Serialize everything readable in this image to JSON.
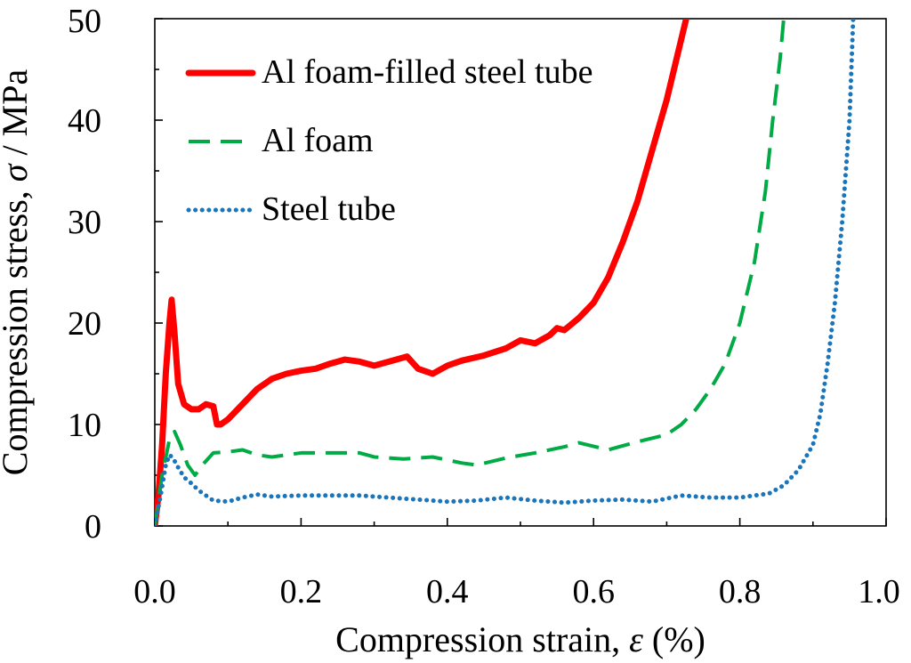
{
  "chart_data": {
    "type": "line",
    "title": "",
    "xlabel": "Compression strain, ",
    "xlabel_symbol": "ε",
    "xlabel_unit": " (%)",
    "ylabel": "Compression stress, ",
    "ylabel_symbol": "σ",
    "ylabel_unit": " / MPa",
    "xlim": [
      0,
      1.0
    ],
    "ylim": [
      0,
      50
    ],
    "x_ticks": [
      "0.0",
      "0.2",
      "0.4",
      "0.6",
      "0.8",
      "1.0"
    ],
    "y_ticks": [
      "0",
      "10",
      "20",
      "30",
      "40",
      "50"
    ],
    "legend_position": "top-left",
    "series": [
      {
        "name": "Al foam-filled steel tube",
        "color": "#ff0000",
        "style": "solid",
        "x": [
          0,
          0.005,
          0.01,
          0.015,
          0.02,
          0.023,
          0.027,
          0.032,
          0.04,
          0.05,
          0.06,
          0.07,
          0.08,
          0.085,
          0.09,
          0.1,
          0.12,
          0.14,
          0.16,
          0.18,
          0.2,
          0.22,
          0.24,
          0.26,
          0.28,
          0.3,
          0.32,
          0.345,
          0.36,
          0.38,
          0.4,
          0.42,
          0.45,
          0.48,
          0.5,
          0.52,
          0.54,
          0.55,
          0.56,
          0.58,
          0.6,
          0.62,
          0.64,
          0.66,
          0.68,
          0.7,
          0.71,
          0.72,
          0.73
        ],
        "y": [
          0,
          3,
          8,
          15,
          20,
          22.3,
          19,
          14,
          12,
          11.5,
          11.5,
          12,
          11.8,
          10,
          10,
          10.5,
          12,
          13.5,
          14.5,
          15,
          15.3,
          15.5,
          16,
          16.4,
          16.2,
          15.8,
          16.2,
          16.7,
          15.5,
          15,
          15.8,
          16.3,
          16.8,
          17.5,
          18.3,
          18,
          18.8,
          19.5,
          19.3,
          20.5,
          22,
          24.5,
          28,
          32,
          37,
          42,
          45,
          48,
          51
        ]
      },
      {
        "name": "Al foam",
        "color": "#00aa44",
        "style": "dashed",
        "x": [
          0,
          0.01,
          0.02,
          0.027,
          0.035,
          0.045,
          0.055,
          0.065,
          0.08,
          0.1,
          0.12,
          0.14,
          0.16,
          0.2,
          0.24,
          0.28,
          0.3,
          0.34,
          0.38,
          0.42,
          0.44,
          0.48,
          0.52,
          0.56,
          0.58,
          0.62,
          0.66,
          0.7,
          0.72,
          0.74,
          0.76,
          0.78,
          0.8,
          0.82,
          0.835,
          0.845,
          0.855,
          0.86
        ],
        "y": [
          0,
          5,
          8.5,
          9.3,
          8,
          6,
          5,
          6,
          7.2,
          7.3,
          7.5,
          7,
          6.8,
          7.2,
          7.2,
          7.2,
          6.8,
          6.6,
          6.8,
          6.2,
          6,
          6.7,
          7.2,
          7.8,
          8.2,
          7.5,
          8.3,
          9,
          10,
          11.5,
          13.5,
          16,
          20,
          26,
          33,
          40,
          46,
          50
        ]
      },
      {
        "name": "Steel tube",
        "color": "#1a75bb",
        "style": "dotted",
        "x": [
          0,
          0.008,
          0.015,
          0.02,
          0.025,
          0.03,
          0.04,
          0.05,
          0.06,
          0.07,
          0.08,
          0.1,
          0.12,
          0.14,
          0.16,
          0.2,
          0.24,
          0.28,
          0.32,
          0.36,
          0.4,
          0.44,
          0.48,
          0.52,
          0.56,
          0.6,
          0.64,
          0.68,
          0.72,
          0.76,
          0.8,
          0.84,
          0.86,
          0.88,
          0.9,
          0.91,
          0.92,
          0.93,
          0.94,
          0.95,
          0.955
        ],
        "y": [
          0,
          3,
          6,
          7,
          6.7,
          6,
          4.8,
          4.2,
          3.5,
          3,
          2.5,
          2.4,
          2.8,
          3.1,
          2.9,
          3,
          3,
          3,
          2.8,
          2.6,
          2.4,
          2.5,
          2.8,
          2.5,
          2.3,
          2.5,
          2.6,
          2.4,
          3,
          2.8,
          2.8,
          3.2,
          4,
          5.5,
          8,
          11,
          16,
          22,
          30,
          40,
          50
        ]
      }
    ]
  }
}
